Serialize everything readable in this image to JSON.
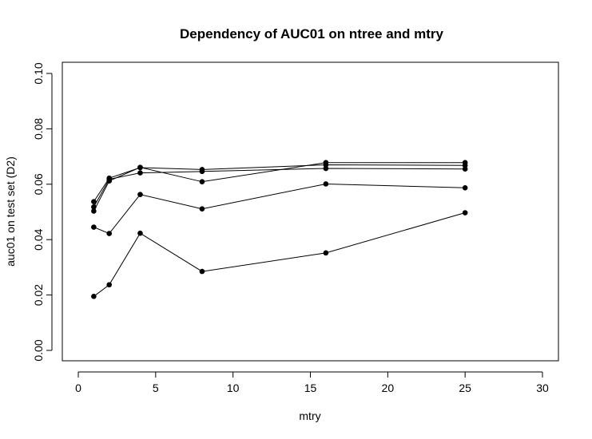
{
  "chart_data": {
    "type": "line",
    "title": "Dependency of AUC01 on ntree and mtry",
    "xlabel": "mtry",
    "ylabel": "auc01 on test set (D2)",
    "xlim": [
      0,
      30
    ],
    "ylim": [
      0,
      0.1
    ],
    "x_ticks": [
      "0",
      "5",
      "10",
      "15",
      "20",
      "25",
      "30"
    ],
    "y_ticks": [
      "0.00",
      "0.02",
      "0.04",
      "0.06",
      "0.08",
      "0.10"
    ],
    "x": [
      1,
      2,
      4,
      8,
      16,
      25
    ],
    "series": [
      {
        "values": [
          0.0195,
          0.0237,
          0.0423,
          0.0285,
          0.0352,
          0.0497
        ]
      },
      {
        "values": [
          0.0445,
          0.0422,
          0.0563,
          0.0511,
          0.0601,
          0.0587
        ]
      },
      {
        "values": [
          0.0503,
          0.0612,
          0.0661,
          0.0609,
          0.0678,
          0.0678
        ]
      },
      {
        "values": [
          0.0518,
          0.0618,
          0.0641,
          0.0646,
          0.0657,
          0.0655
        ]
      },
      {
        "values": [
          0.0537,
          0.0622,
          0.066,
          0.0653,
          0.067,
          0.0668
        ]
      }
    ],
    "grid": false,
    "legend": "none",
    "colors": {
      "line": "#000000",
      "point": "#000000"
    }
  }
}
